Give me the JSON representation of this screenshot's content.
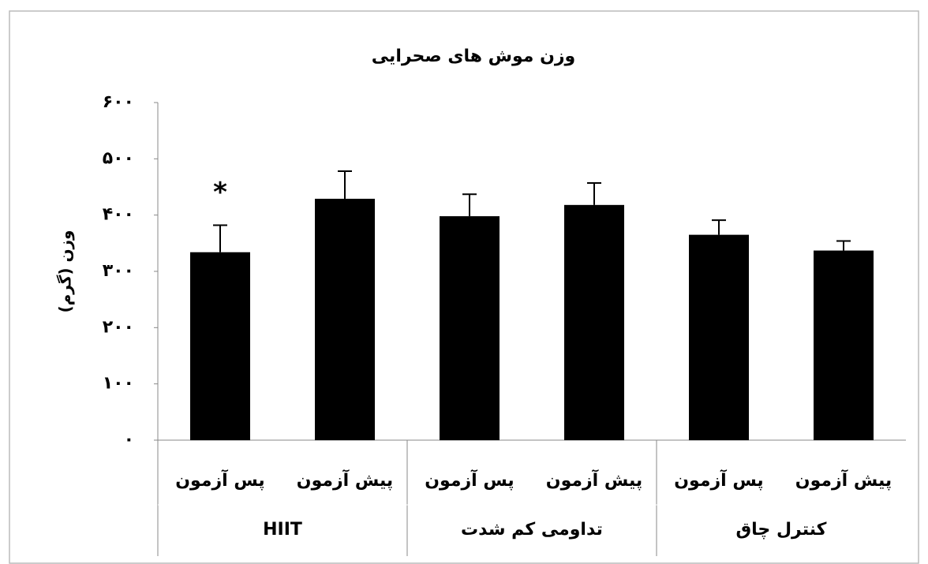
{
  "chart_data": {
    "type": "bar",
    "title": "وزن موش های صحرایی",
    "y_label": "وزن (گرم)",
    "color": "#000000",
    "ylim": [
      0,
      600
    ],
    "yticks": [
      {
        "value": 0,
        "label": "۰"
      },
      {
        "value": 100,
        "label": "۱۰۰"
      },
      {
        "value": 200,
        "label": "۲۰۰"
      },
      {
        "value": 300,
        "label": "۳۰۰"
      },
      {
        "value": 400,
        "label": "۴۰۰"
      },
      {
        "value": 500,
        "label": "۵۰۰"
      },
      {
        "value": 600,
        "label": "۶۰۰"
      }
    ],
    "groups": [
      {
        "name": "HIIT",
        "categories": [
          "پس آزمون",
          "پیش آزمون"
        ],
        "values": [
          334,
          429
        ],
        "errors": [
          48,
          49
        ],
        "annotations": [
          "*",
          null
        ]
      },
      {
        "name": "تداومی کم شدت",
        "categories": [
          "پس آزمون",
          "پیش آزمون"
        ],
        "values": [
          398,
          418
        ],
        "errors": [
          39,
          39
        ]
      },
      {
        "name": "کنترل چاق",
        "categories": [
          "پس آزمون",
          "پیش آزمون"
        ],
        "values": [
          365,
          337
        ],
        "errors": [
          26,
          17
        ]
      }
    ]
  }
}
